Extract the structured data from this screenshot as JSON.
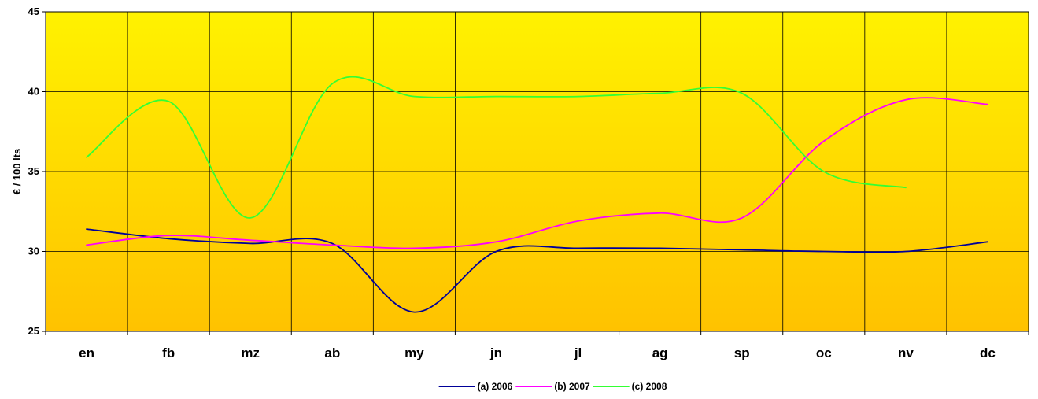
{
  "chart_data": {
    "type": "line",
    "title": "",
    "xlabel": "",
    "ylabel": "€ / 100 lts",
    "ylim": [
      25,
      45
    ],
    "yticks": [
      25,
      30,
      35,
      40,
      45
    ],
    "categories": [
      "en",
      "fb",
      "mz",
      "ab",
      "my",
      "jn",
      "jl",
      "ag",
      "sp",
      "oc",
      "nv",
      "dc"
    ],
    "grid": true,
    "legend_position": "bottom",
    "background": {
      "top_color": "#fff200",
      "bottom_color": "#ffc200"
    },
    "series": [
      {
        "name": "(a) 2006",
        "color": "#000099",
        "values": [
          31.4,
          30.8,
          30.5,
          30.5,
          26.2,
          30.0,
          30.2,
          30.2,
          30.1,
          30.0,
          30.0,
          30.6
        ]
      },
      {
        "name": "(b) 2007",
        "color": "#ff00ff",
        "values": [
          30.4,
          31.0,
          30.7,
          30.4,
          30.2,
          30.6,
          31.9,
          32.4,
          32.1,
          36.9,
          39.5,
          39.2
        ]
      },
      {
        "name": "(c) 2008",
        "color": "#33ff33",
        "values": [
          35.9,
          39.4,
          32.1,
          40.5,
          39.7,
          39.7,
          39.7,
          39.9,
          39.9,
          35.0,
          34.0,
          null
        ]
      }
    ]
  }
}
